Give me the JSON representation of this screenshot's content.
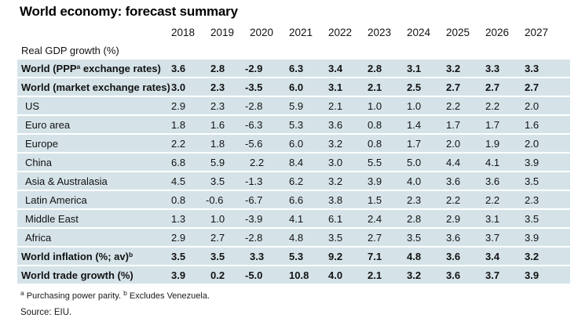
{
  "chart_data": {
    "type": "table",
    "title": "World economy: forecast summary",
    "section_label": "Real GDP growth (%)",
    "columns": [
      "2018",
      "2019",
      "2020",
      "2021",
      "2022",
      "2023",
      "2024",
      "2025",
      "2026",
      "2027"
    ],
    "rows": [
      {
        "label": "World (PPP^a exchange rates)",
        "emphasis": true,
        "values": [
          "3.6",
          "2.8",
          "-2.9",
          "6.3",
          "3.4",
          "2.8",
          "3.1",
          "3.2",
          "3.3",
          "3.3"
        ]
      },
      {
        "label": "World (market exchange rates)",
        "emphasis": true,
        "values": [
          "3.0",
          "2.3",
          "-3.5",
          "6.0",
          "3.1",
          "2.1",
          "2.5",
          "2.7",
          "2.7",
          "2.7"
        ]
      },
      {
        "label": "US",
        "emphasis": false,
        "values": [
          "2.9",
          "2.3",
          "-2.8",
          "5.9",
          "2.1",
          "1.0",
          "1.0",
          "2.2",
          "2.2",
          "2.0"
        ]
      },
      {
        "label": "Euro area",
        "emphasis": false,
        "values": [
          "1.8",
          "1.6",
          "-6.3",
          "5.3",
          "3.6",
          "0.8",
          "1.4",
          "1.7",
          "1.7",
          "1.6"
        ]
      },
      {
        "label": "Europe",
        "emphasis": false,
        "values": [
          "2.2",
          "1.8",
          "-5.6",
          "6.0",
          "3.2",
          "0.8",
          "1.7",
          "2.0",
          "1.9",
          "2.0"
        ]
      },
      {
        "label": "China",
        "emphasis": false,
        "values": [
          "6.8",
          "5.9",
          "2.2",
          "8.4",
          "3.0",
          "5.5",
          "5.0",
          "4.4",
          "4.1",
          "3.9"
        ]
      },
      {
        "label": "Asia & Australasia",
        "emphasis": false,
        "values": [
          "4.5",
          "3.5",
          "-1.3",
          "6.2",
          "3.2",
          "3.9",
          "4.0",
          "3.6",
          "3.6",
          "3.5"
        ]
      },
      {
        "label": "Latin America",
        "emphasis": false,
        "values": [
          "0.8",
          "-0.6",
          "-6.7",
          "6.6",
          "3.8",
          "1.5",
          "2.3",
          "2.2",
          "2.2",
          "2.3"
        ]
      },
      {
        "label": "Middle East",
        "emphasis": false,
        "values": [
          "1.3",
          "1.0",
          "-3.9",
          "4.1",
          "6.1",
          "2.4",
          "2.8",
          "2.9",
          "3.1",
          "3.5"
        ]
      },
      {
        "label": "Africa",
        "emphasis": false,
        "values": [
          "2.9",
          "2.7",
          "-2.8",
          "4.8",
          "3.5",
          "2.7",
          "3.5",
          "3.6",
          "3.7",
          "3.9"
        ]
      },
      {
        "label": "World inflation (%; av)^b",
        "emphasis": true,
        "values": [
          "3.5",
          "3.5",
          "3.3",
          "5.3",
          "9.2",
          "7.1",
          "4.8",
          "3.6",
          "3.4",
          "3.2"
        ]
      },
      {
        "label": "World trade growth (%)",
        "emphasis": true,
        "values": [
          "3.9",
          "0.2",
          "-5.0",
          "10.8",
          "4.0",
          "2.1",
          "3.2",
          "3.6",
          "3.7",
          "3.9"
        ]
      }
    ],
    "footnote": "^a Purchasing power parity. ^b Excludes Venezuela.",
    "source": "Source: EIU.",
    "colors": {
      "row_background": "#d5e3e9",
      "text": "#121212",
      "title": "#000000"
    },
    "layout": {
      "grid": "off",
      "row_separator": "white 2px",
      "value_alignment": "left-aligned under year labels"
    }
  }
}
